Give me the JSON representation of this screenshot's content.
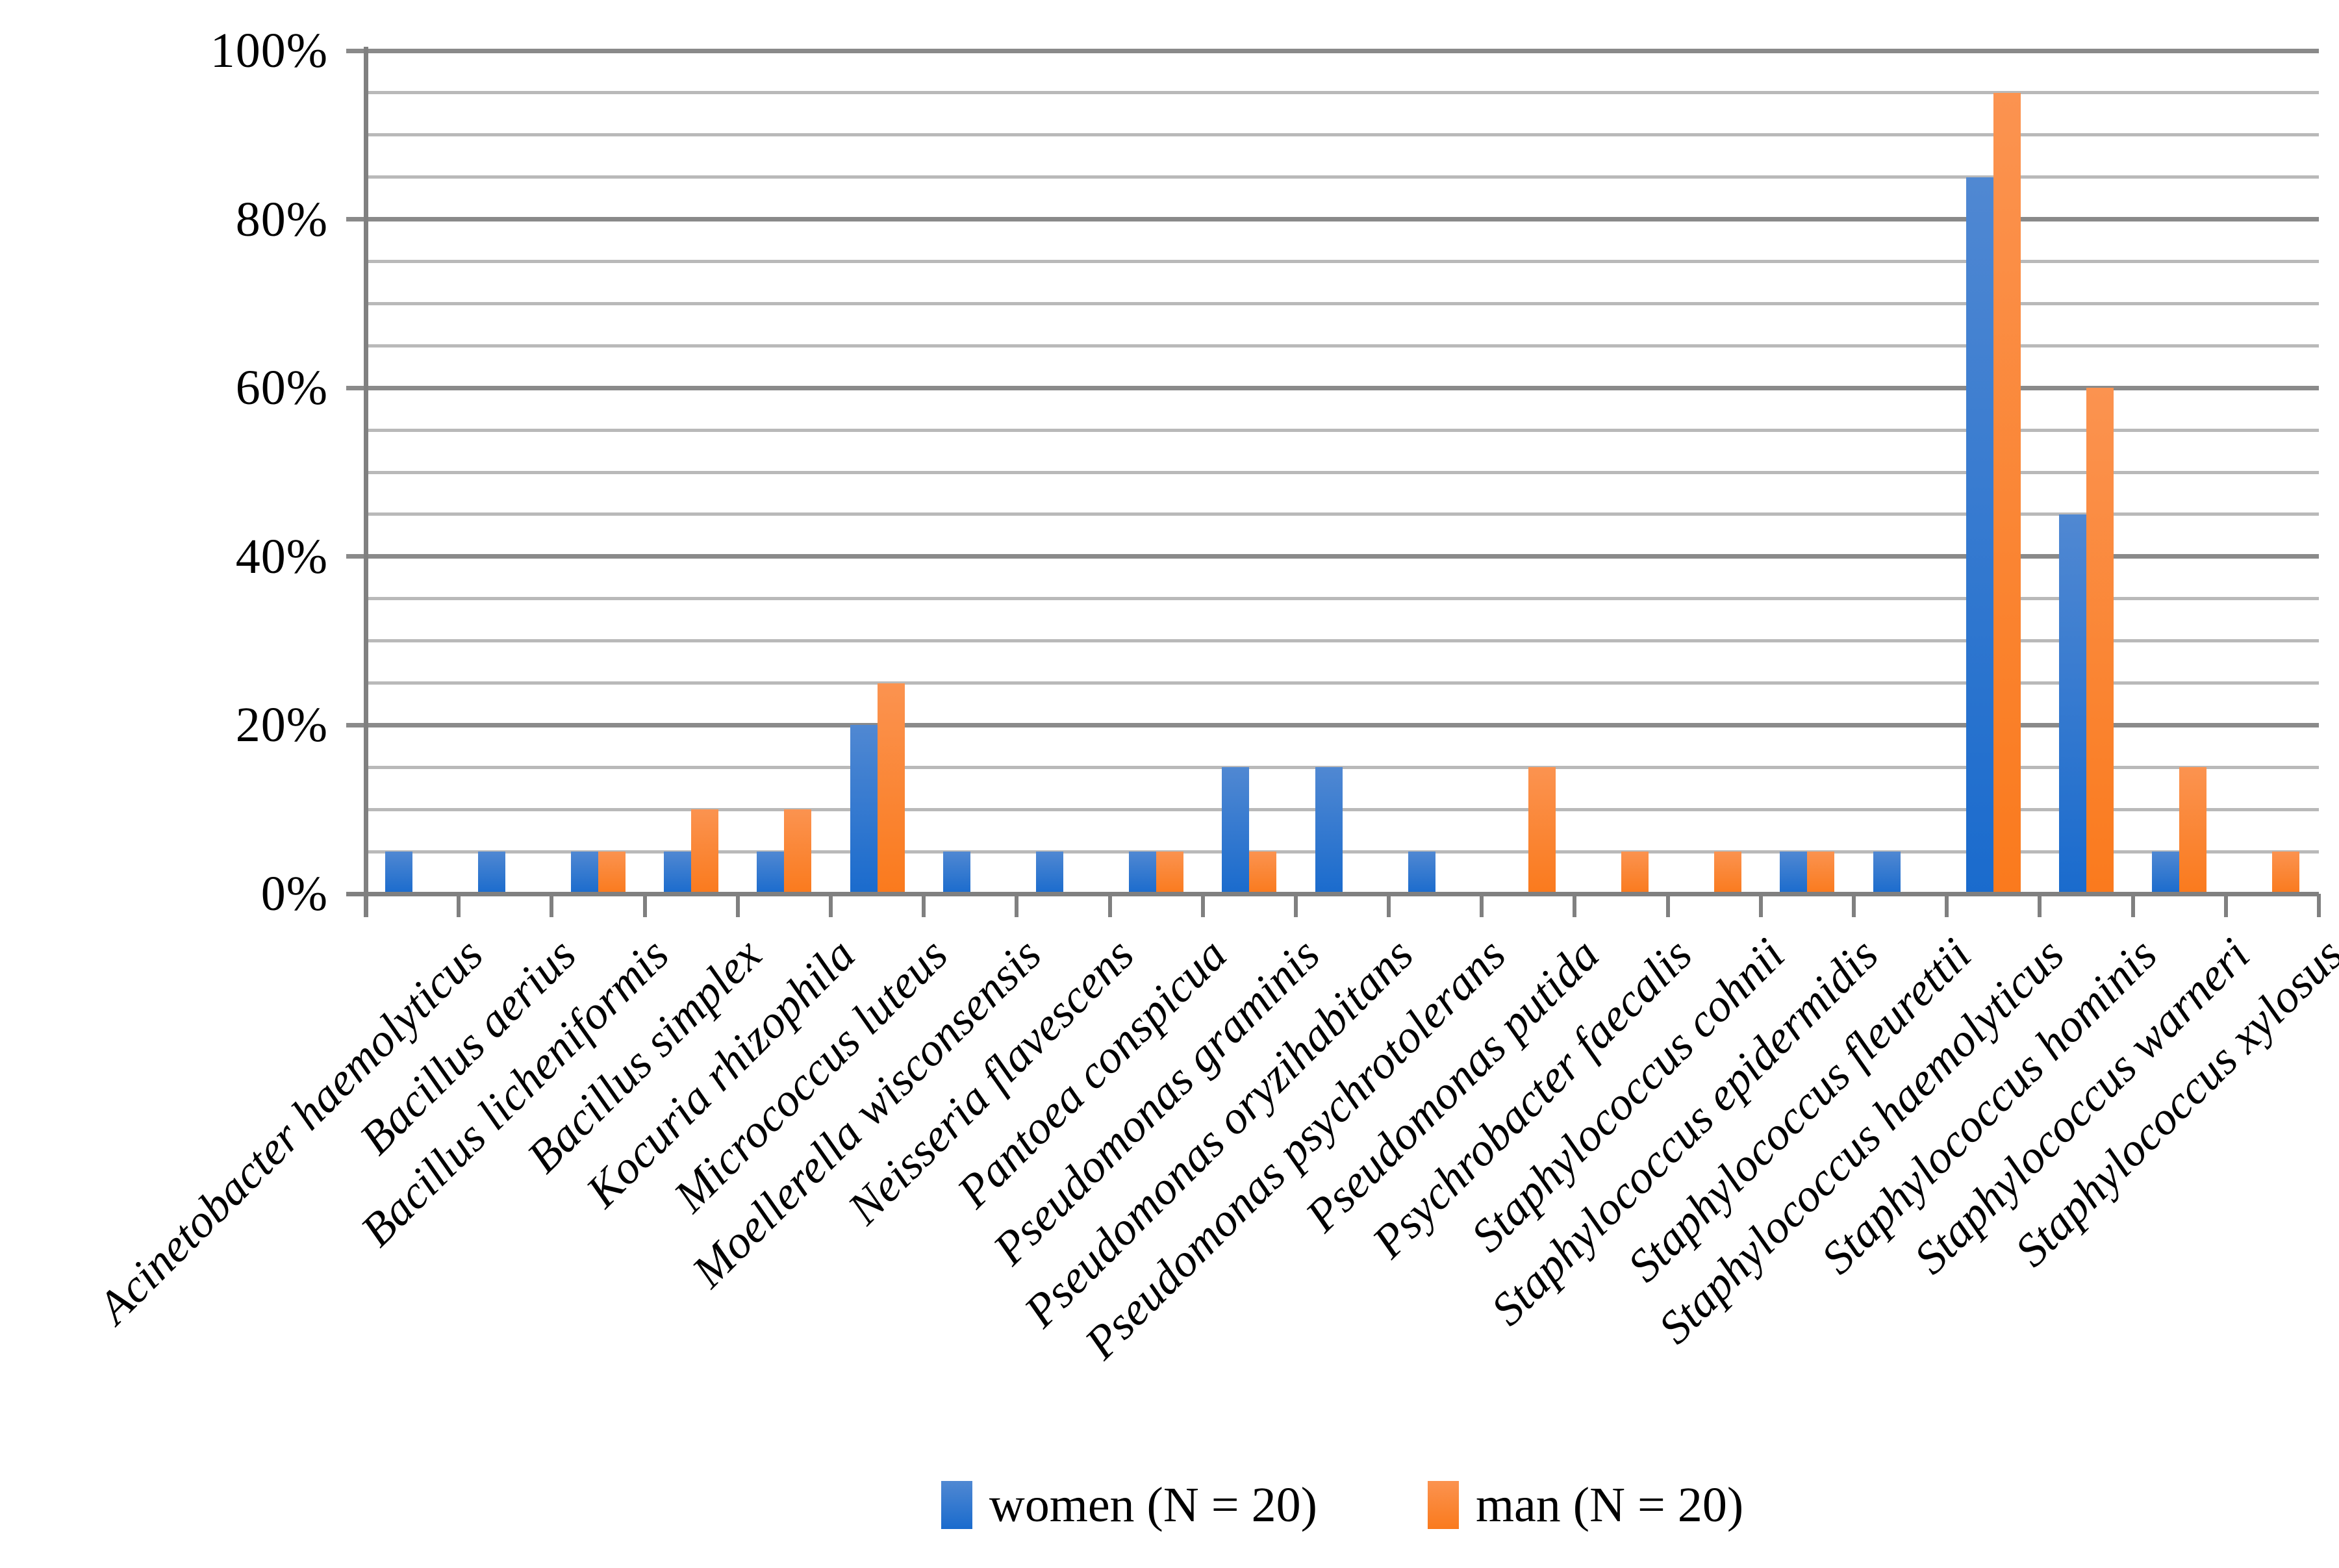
{
  "chart_data": {
    "type": "bar",
    "title": "",
    "xlabel": "",
    "ylabel": "",
    "categories": [
      "Acinetobacter haemolyticus",
      "Bacillus aerius",
      "Bacillus licheniformis",
      "Bacillus simplex",
      "Kocuria rhizophila",
      "Micrococcus luteus",
      "Moellerella wisconsensis",
      "Neisseria flavescens",
      "Pantoea conspicua",
      "Pseudomonas graminis",
      "Pseudomonas oryzihabitans",
      "Pseudomonas psychrotolerans",
      "Pseudomonas putida",
      "Psychrobacter faecalis",
      "Staphylococcus cohnii",
      "Staphylococcus epidermidis",
      "Staphylococcus fleurettii",
      "Staphylococcus haemolyticus",
      "Staphylococcus hominis",
      "Staphylococcus warneri",
      "Staphylococcus xylosus"
    ],
    "series": [
      {
        "name": "women (N = 20)",
        "color_top": "#5088d2",
        "color_bottom": "#1a6bcd",
        "values": [
          5,
          5,
          5,
          5,
          5,
          20,
          5,
          5,
          5,
          15,
          15,
          5,
          0,
          0,
          0,
          5,
          5,
          85,
          45,
          5,
          0
        ]
      },
      {
        "name": "man (N = 20)",
        "color_top": "#fb9350",
        "color_bottom": "#fa7a1d",
        "values": [
          0,
          0,
          5,
          10,
          10,
          25,
          0,
          0,
          5,
          5,
          0,
          0,
          15,
          5,
          5,
          5,
          0,
          95,
          60,
          15,
          5
        ]
      }
    ],
    "y_axis": {
      "min": 0,
      "max": 100,
      "major_step": 20,
      "minor_step": 5,
      "tick_labels": [
        "0%",
        "20%",
        "40%",
        "60%",
        "80%",
        "100%"
      ],
      "unit": "percent"
    },
    "grid": "horizontal: minor every 5%, major every 20%",
    "legend_position": "bottom-center",
    "bar_style": "vertical gradient fill, grouped pairs, no gap within pair"
  },
  "legend": {
    "items": [
      {
        "label": "women (N = 20)",
        "swatch": "blue-gradient"
      },
      {
        "label": "man (N = 20)",
        "swatch": "orange-gradient"
      }
    ]
  }
}
